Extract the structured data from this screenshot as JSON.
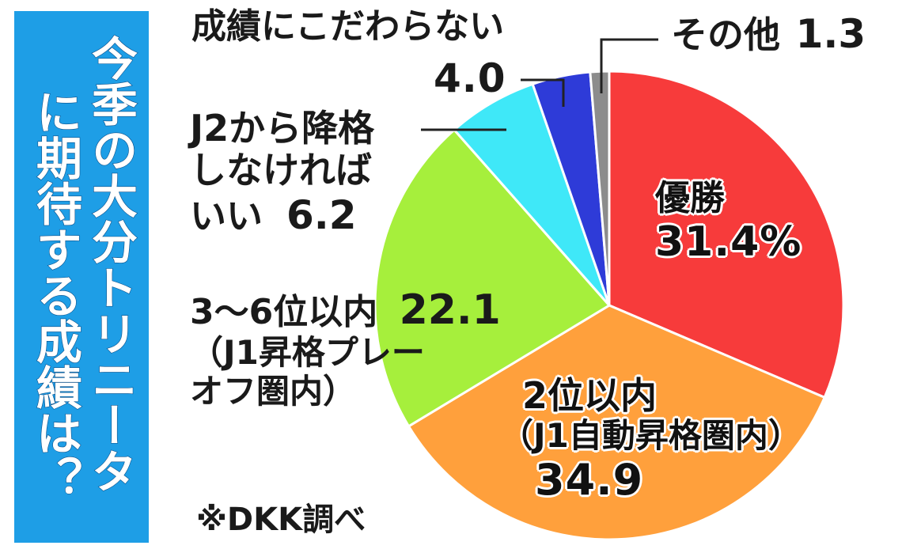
{
  "title": "今季の大分トリニータに期待する成績は？",
  "title_columns": [
    "今季の大分トリニータ",
    "に期待する成績は？"
  ],
  "source_note": "※DKK調べ",
  "colors": {
    "title_bg": "#1e9ee6",
    "title_text": "#ffffff"
  },
  "chart_data": {
    "type": "pie",
    "unit": "%",
    "start": "12 o'clock, clockwise",
    "slices": [
      {
        "name": "優勝",
        "value": 31.4,
        "value_label": "31.4%",
        "color": "#f73b3b"
      },
      {
        "name": "2位以内（J1自動昇格圏内）",
        "value": 34.9,
        "value_label": "34.9",
        "color": "#ffa03c"
      },
      {
        "name": "3〜6位以内（J1昇格プレーオフ圏内）",
        "value": 22.1,
        "value_label": "22.1",
        "color": "#a6ef3c"
      },
      {
        "name": "J2から降格しなければいい",
        "value": 6.2,
        "value_label": "6.2",
        "color": "#3fe8f8"
      },
      {
        "name": "成績にこだわらない",
        "value": 4.0,
        "value_label": "4.0",
        "color": "#2e3bd8"
      },
      {
        "name": "その他",
        "value": 1.3,
        "value_label": "1.3",
        "color": "#8c8c8c"
      }
    ]
  },
  "labels": {
    "win": {
      "line1": "優勝",
      "value": "31.4%"
    },
    "top2": {
      "line1": "2位以内",
      "line2": "（J1自動昇格圏内）",
      "value": "34.9"
    },
    "top6": {
      "line1": "3〜6位以内",
      "value": "22.1",
      "line2": "（J1昇格プレー",
      "line3": "オフ圏内）"
    },
    "avoid": {
      "line1": "J2から降格",
      "line2": "しなければ",
      "line3": "いい",
      "value": "6.2"
    },
    "nocare": {
      "line1": "成績にこだわらない",
      "value": "4.0"
    },
    "other": {
      "line1": "その他",
      "value": "1.3"
    }
  }
}
